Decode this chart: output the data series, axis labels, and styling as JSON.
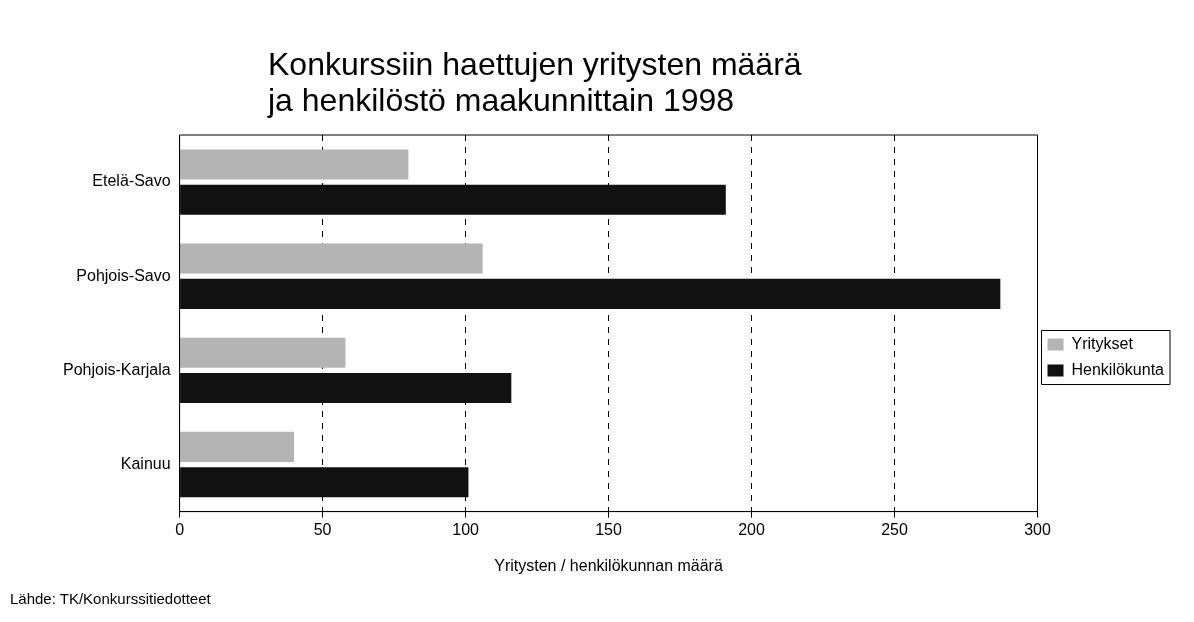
{
  "chart_data": {
    "type": "bar",
    "orientation": "horizontal",
    "title": "Konkurssiin haettujen yritysten määrä ja henkilöstö maakunnittain 1998",
    "xlabel": "Yritysten / henkilökunnan määrä",
    "categories": [
      "Etelä-Savo",
      "Pohjois-Savo",
      "Pohjois-Karjala",
      "Kainuu"
    ],
    "series": [
      {
        "name": "Yritykset",
        "color": "#b4b4b4",
        "values": [
          80,
          106,
          58,
          40
        ]
      },
      {
        "name": "Henkilökunta",
        "color": "#111111",
        "values": [
          191,
          287,
          116,
          101
        ]
      }
    ],
    "xlim": [
      0,
      300
    ],
    "xticks": [
      0,
      50,
      100,
      150,
      200,
      250,
      300
    ],
    "grid": "x",
    "legend": "right",
    "annotations": [
      "Lähde: TK/Konkurssitiedotteet"
    ]
  }
}
